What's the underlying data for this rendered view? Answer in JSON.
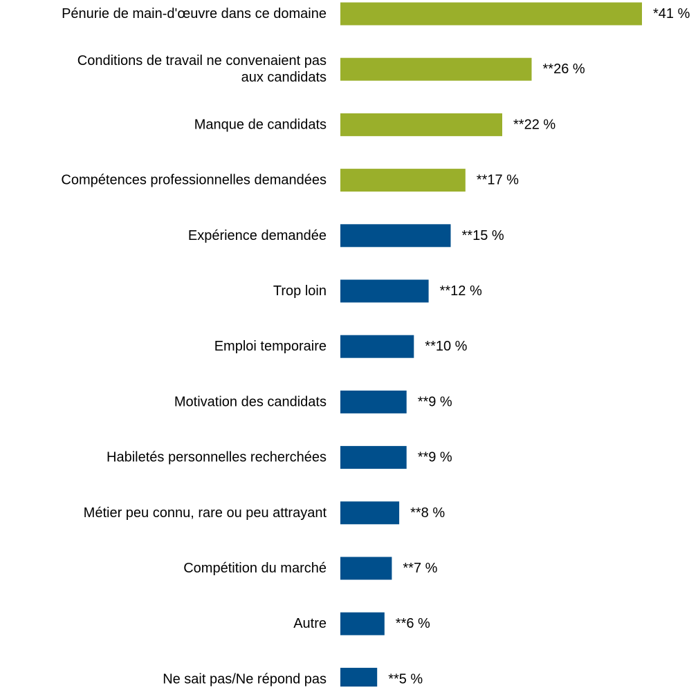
{
  "chart_data": {
    "type": "bar",
    "orientation": "horizontal",
    "title": "",
    "xlabel": "",
    "ylabel": "",
    "xlim": [
      0,
      41
    ],
    "grid": false,
    "legend": "none",
    "categories": [
      "Pénurie de main-d'œuvre dans ce domaine",
      "Conditions de travail ne convenaient pas aux candidats",
      "Manque de candidats",
      "Compétences professionnelles demandées",
      "Expérience demandée",
      "Trop loin",
      "Emploi temporaire",
      "Motivation des candidats",
      "Habiletés personnelles recherchées",
      "Métier peu connu, rare ou peu attrayant",
      "Compétition du marché",
      "Autre",
      "Ne sait pas/Ne répond pas"
    ],
    "category_lines": [
      [
        "Pénurie de main-d'œuvre dans ce domaine"
      ],
      [
        "Conditions de travail ne convenaient pas",
        "aux candidats"
      ],
      [
        "Manque de candidats"
      ],
      [
        "Compétences professionnelles demandées"
      ],
      [
        "Expérience demandée"
      ],
      [
        "Trop loin"
      ],
      [
        "Emploi temporaire"
      ],
      [
        "Motivation des candidats"
      ],
      [
        "Habiletés personnelles recherchées"
      ],
      [
        "Métier peu connu, rare ou peu attrayant"
      ],
      [
        "Compétition du marché"
      ],
      [
        "Autre"
      ],
      [
        "Ne sait pas/Ne répond pas"
      ]
    ],
    "values": [
      41,
      26,
      22,
      17,
      15,
      12,
      10,
      9,
      9,
      8,
      7,
      6,
      5
    ],
    "data_labels": [
      "*41 %",
      "**26 %",
      "**22 %",
      "**17 %",
      "**15 %",
      "**12 %",
      "**10 %",
      "**9 %",
      "**9 %",
      "**8 %",
      "**7 %",
      "**6 %",
      "**5 %"
    ],
    "colors": [
      "#9aaf2b",
      "#9aaf2b",
      "#9aaf2b",
      "#9aaf2b",
      "#004f8c",
      "#004f8c",
      "#004f8c",
      "#004f8c",
      "#004f8c",
      "#004f8c",
      "#004f8c",
      "#004f8c",
      "#004f8c"
    ]
  }
}
